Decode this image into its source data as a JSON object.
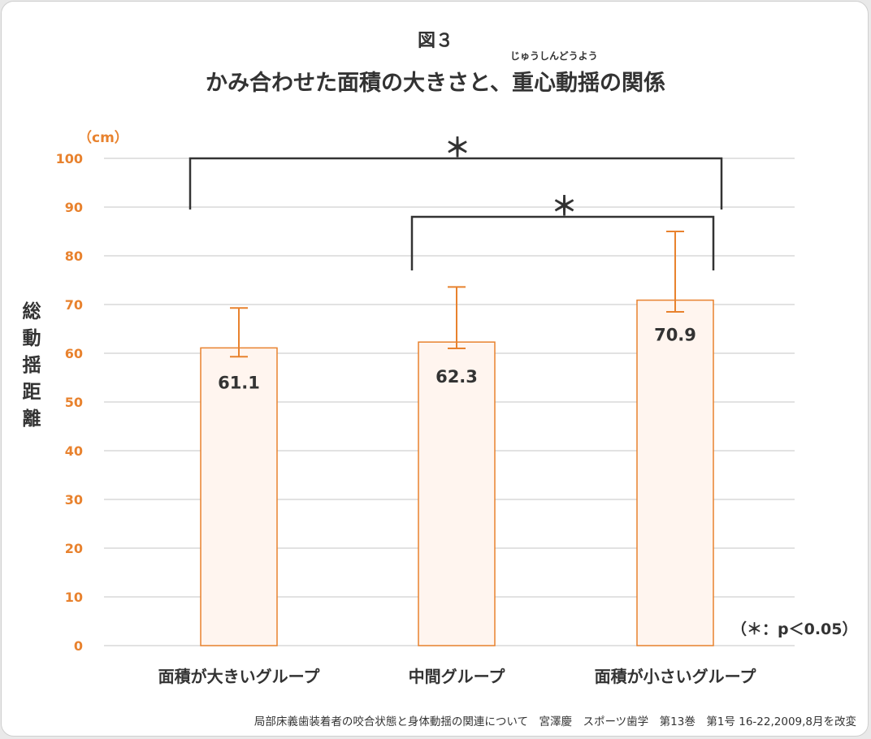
{
  "figure_number": "図３",
  "ruby": "じゅうしんどうよう",
  "title_part1": "かみ合わせた面積の大きさと、",
  "title_part2": "重心動揺の関係",
  "y_unit": "（cm）",
  "significance_note": "（＊：p＜0.05）",
  "source": "局部床義歯装着者の咬合状態と身体動揺の関連について　宮澤慶　スポーツ歯学　第13巻　第1号 16-22,2009,8月を改変",
  "colors": {
    "bar_fill": "#fff5ef",
    "bar_stroke": "#e8822e",
    "error_bar": "#e8822e",
    "tick_text": "#e8822e",
    "text": "#333333",
    "grid": "#d0d0d0",
    "bracket": "#333333"
  },
  "chart_data": {
    "type": "bar",
    "title": "かみ合わせた面積の大きさと、重心動揺の関係",
    "ylabel": "総動揺距離",
    "y_unit": "cm",
    "ylim": [
      0,
      100
    ],
    "yticks": [
      0,
      10,
      20,
      30,
      40,
      50,
      60,
      70,
      80,
      90,
      100
    ],
    "grid": true,
    "categories": [
      "面積が大きいグループ",
      "中間グループ",
      "面積が小さいグループ"
    ],
    "values": [
      61.1,
      62.3,
      70.9
    ],
    "value_labels": [
      "61.1",
      "62.3",
      "70.9"
    ],
    "error_bars": [
      {
        "low": 59.3,
        "high": 69.3
      },
      {
        "low": 61.0,
        "high": 73.6
      },
      {
        "low": 68.5,
        "high": 85.0
      }
    ],
    "significance": [
      {
        "from": 0,
        "to": 2,
        "label": "＊",
        "level": 100
      },
      {
        "from": 1,
        "to": 2,
        "label": "＊",
        "level": 88
      }
    ]
  }
}
